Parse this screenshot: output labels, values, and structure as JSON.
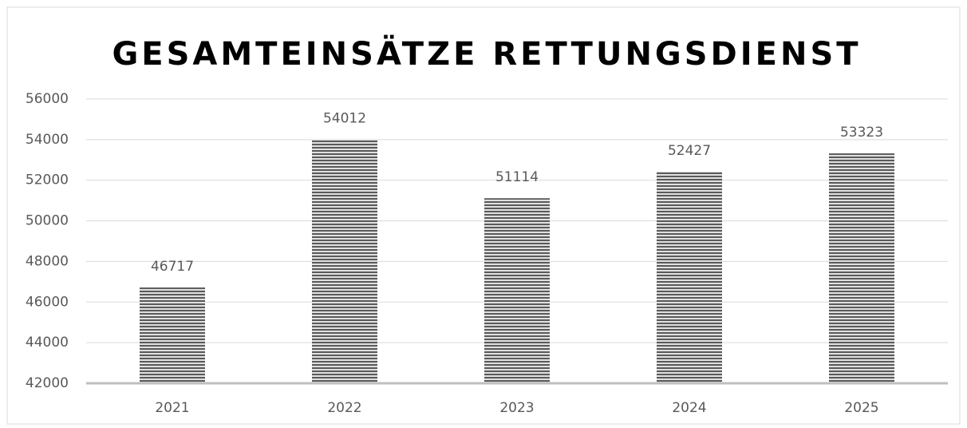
{
  "chart_data": {
    "type": "bar",
    "title": "GESAMTEINSÄTZE RETTUNGSDIENST",
    "categories": [
      "2021",
      "2022",
      "2023",
      "2024",
      "2025"
    ],
    "values": [
      46717,
      54012,
      51114,
      52427,
      53323
    ],
    "color": "#595959",
    "ylim": [
      42000,
      56000
    ],
    "yticks": [
      42000,
      44000,
      46000,
      48000,
      50000,
      52000,
      54000,
      56000
    ],
    "grid": true
  }
}
